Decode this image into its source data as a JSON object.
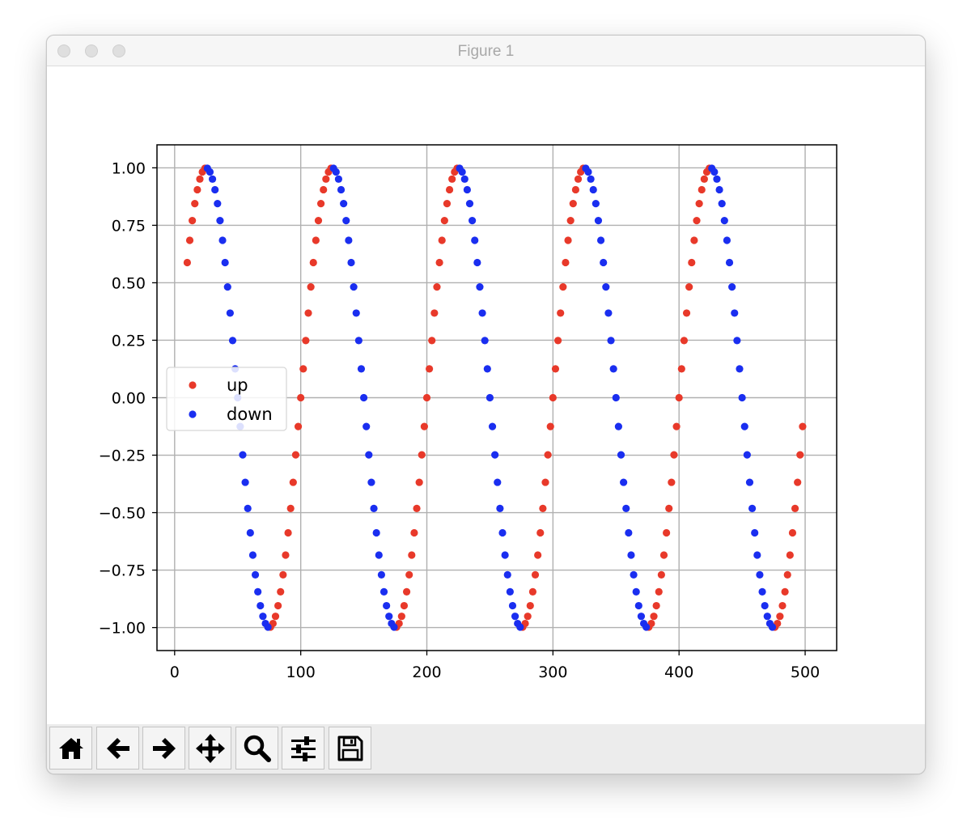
{
  "window": {
    "title": "Figure 1"
  },
  "toolbar": {
    "buttons": [
      {
        "icon": "home-icon"
      },
      {
        "icon": "back-arrow-icon"
      },
      {
        "icon": "forward-arrow-icon"
      },
      {
        "icon": "pan-move-icon"
      },
      {
        "icon": "zoom-magnifier-icon"
      },
      {
        "icon": "subplots-sliders-icon"
      },
      {
        "icon": "save-floppy-icon"
      }
    ]
  },
  "chart_data": {
    "type": "scatter",
    "title": "",
    "xlabel": "",
    "ylabel": "",
    "xlim": [
      -14,
      525
    ],
    "ylim": [
      -1.1,
      1.1
    ],
    "xticks": [
      0,
      100,
      200,
      300,
      400,
      500
    ],
    "xtick_labels": [
      "0",
      "100",
      "200",
      "300",
      "400",
      "500"
    ],
    "yticks": [
      1.0,
      0.75,
      0.5,
      0.25,
      0.0,
      -0.25,
      -0.5,
      -0.75,
      -1.0
    ],
    "ytick_labels": [
      "1.00",
      "0.75",
      "0.50",
      "0.25",
      "0.00",
      "−0.25",
      "−0.50",
      "−0.75",
      "−1.00"
    ],
    "grid": true,
    "legend": {
      "placement": "center-left",
      "entries": [
        "up",
        "down"
      ]
    },
    "function": "y = sin(2πx/100), x = 10, 12, …, 498 (every 2 units)",
    "series": [
      {
        "name": "up",
        "color": "#e8392a",
        "rule": "points where y is increasing",
        "x": [
          10,
          12,
          14,
          16,
          18,
          20,
          22,
          24,
          76,
          78,
          80,
          82,
          84,
          86,
          88,
          90,
          92,
          94,
          96,
          98,
          100,
          102,
          104,
          106,
          108,
          110,
          112,
          114,
          116,
          118,
          120,
          122,
          124,
          176,
          178,
          180,
          182,
          184,
          186,
          188,
          190,
          192,
          194,
          196,
          198,
          200,
          202,
          204,
          206,
          208,
          210,
          212,
          214,
          216,
          218,
          220,
          222,
          224,
          276,
          278,
          280,
          282,
          284,
          286,
          288,
          290,
          292,
          294,
          296,
          298,
          300,
          302,
          304,
          306,
          308,
          310,
          312,
          314,
          316,
          318,
          320,
          322,
          324,
          376,
          378,
          380,
          382,
          384,
          386,
          388,
          390,
          392,
          394,
          396,
          398,
          400,
          402,
          404,
          406,
          408,
          410,
          412,
          414,
          416,
          418,
          420,
          422,
          424,
          476,
          478,
          480,
          482,
          484,
          486,
          488,
          490,
          492,
          494,
          496,
          498
        ]
      },
      {
        "name": "down",
        "color": "#1a2ef0",
        "rule": "points where y is decreasing",
        "x": [
          26,
          28,
          30,
          32,
          34,
          36,
          38,
          40,
          42,
          44,
          46,
          48,
          50,
          52,
          54,
          56,
          58,
          60,
          62,
          64,
          66,
          68,
          70,
          72,
          74,
          126,
          128,
          130,
          132,
          134,
          136,
          138,
          140,
          142,
          144,
          146,
          148,
          150,
          152,
          154,
          156,
          158,
          160,
          162,
          164,
          166,
          168,
          170,
          172,
          174,
          226,
          228,
          230,
          232,
          234,
          236,
          238,
          240,
          242,
          244,
          246,
          248,
          250,
          252,
          254,
          256,
          258,
          260,
          262,
          264,
          266,
          268,
          270,
          272,
          274,
          326,
          328,
          330,
          332,
          334,
          336,
          338,
          340,
          342,
          344,
          346,
          348,
          350,
          352,
          354,
          356,
          358,
          360,
          362,
          364,
          366,
          368,
          370,
          372,
          374,
          426,
          428,
          430,
          432,
          434,
          436,
          438,
          440,
          442,
          444,
          446,
          448,
          450,
          452,
          454,
          456,
          458,
          460,
          462,
          464,
          466,
          468,
          470,
          472,
          474
        ]
      }
    ]
  }
}
